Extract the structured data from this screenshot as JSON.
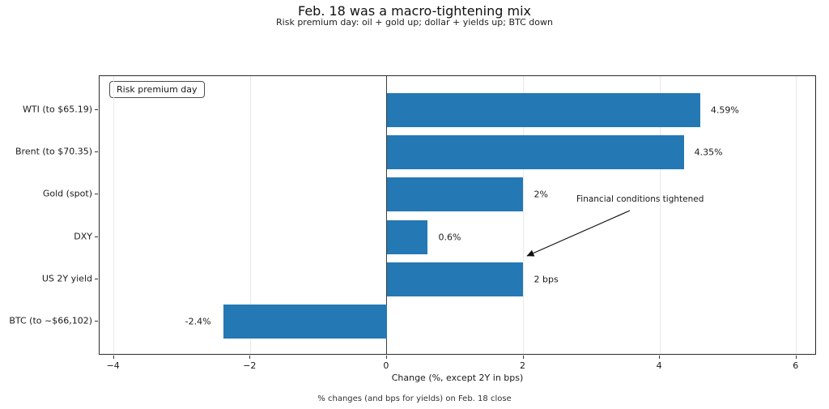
{
  "header": {
    "title": "Feb. 18 was a macro-tightening mix",
    "subtitle": "Risk premium day: oil + gold up; dollar + yields up; BTC down"
  },
  "footer": {
    "text": "% changes (and bps for yields) on Feb. 18 close"
  },
  "chart_data": {
    "type": "bar",
    "orientation": "horizontal",
    "title": "Feb. 18 was a macro-tightening mix",
    "subtitle": "Risk premium day: oil + gold up; dollar + yields up; BTC down",
    "categories": [
      "WTI (to $65.19)",
      "Brent (to $70.35)",
      "Gold (spot)",
      "DXY",
      "US 2Y yield",
      "BTC (to ~$66,102)"
    ],
    "values": [
      4.59,
      4.35,
      2,
      0.6,
      2,
      -2.4
    ],
    "value_labels": [
      "4.59%",
      "4.35%",
      "2%",
      "0.6%",
      "2 bps",
      "-2.4%"
    ],
    "xlabel": "Change (%, except 2Y in bps)",
    "xlim": [
      -4.21,
      6.3
    ],
    "xticks": [
      -4,
      -2,
      0,
      2,
      4,
      6
    ],
    "xtick_labels": [
      "−4",
      "−2",
      "0",
      "2",
      "4",
      "6"
    ],
    "bar_color": "#2478b4",
    "grid": "vertical",
    "gridline_color": "#e9e9e9",
    "zero_line": true,
    "legend_label": "Risk premium day",
    "legend_position": "upper-left",
    "annotation": "Financial conditions tightened"
  }
}
